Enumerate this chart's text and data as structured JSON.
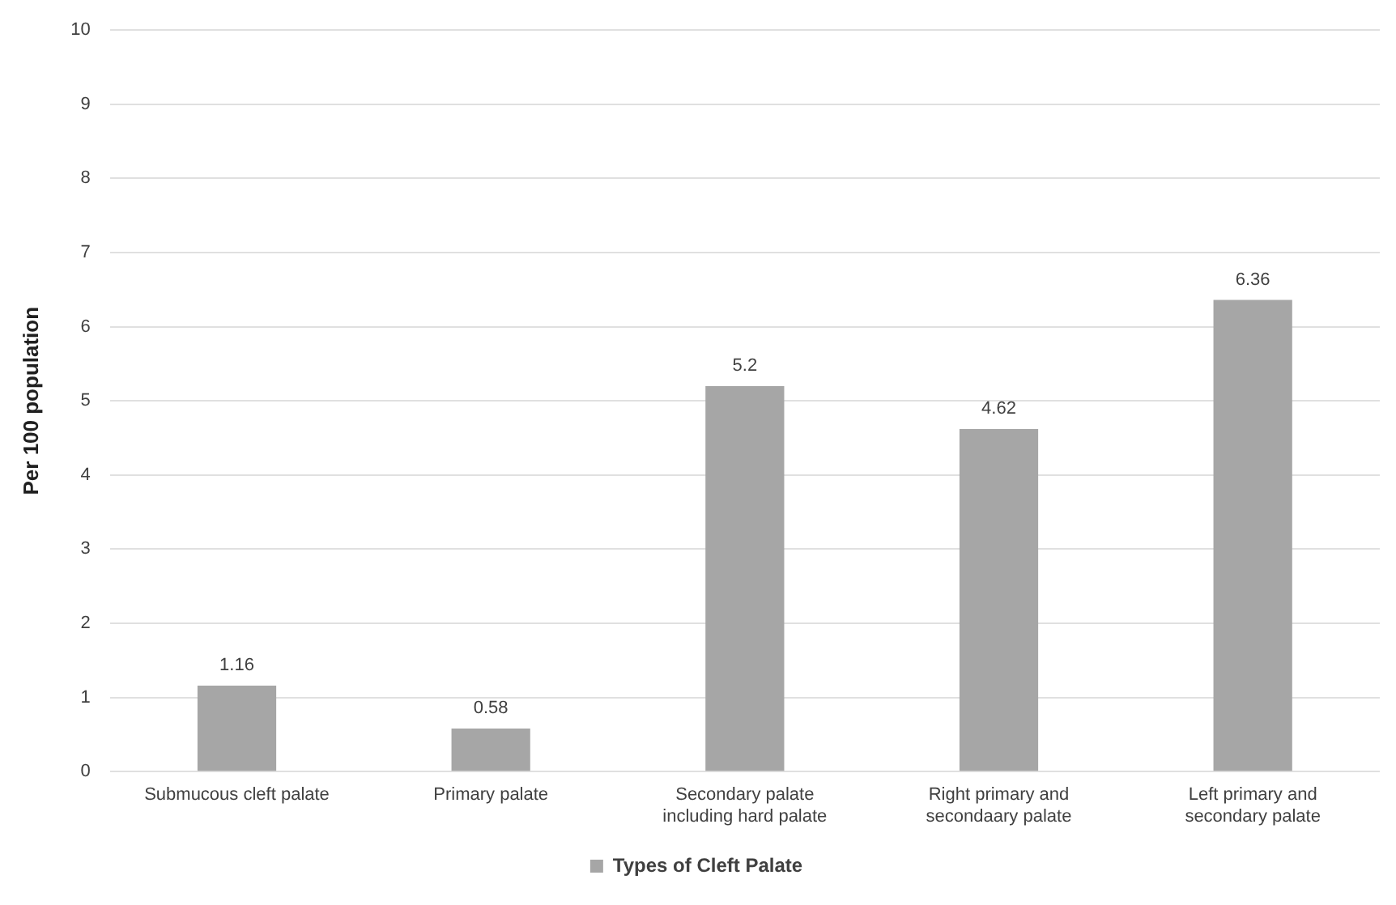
{
  "chart_data": {
    "type": "bar",
    "ylabel": "Per 100 population",
    "categories": [
      "Submucous cleft palate",
      "Primary palate",
      "Secondary palate including hard palate",
      "Right primary and secondaary palate",
      "Left primary and secondary palate"
    ],
    "series": [
      {
        "name": "Types of Cleft Palate",
        "color": "#a6a6a6",
        "values": [
          1.16,
          0.58,
          5.2,
          4.62,
          6.36
        ]
      }
    ],
    "ylim": [
      0,
      10
    ],
    "yticks": [
      0,
      1,
      2,
      3,
      4,
      5,
      6,
      7,
      8,
      9,
      10
    ],
    "grid": "y",
    "legend": "bottom",
    "data_labels": true
  }
}
